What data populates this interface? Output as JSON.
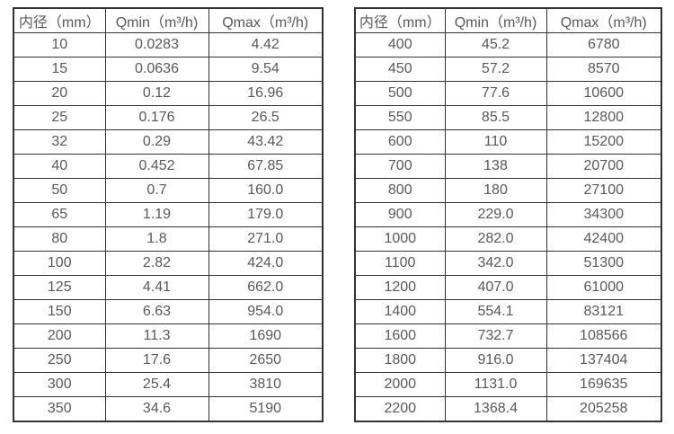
{
  "page": {
    "background": "#ffffff",
    "border_color": "#333333",
    "text_color": "#595959"
  },
  "tables": [
    {
      "name": "flow-table-small-diameters",
      "headers": [
        "内径（mm）",
        "Qmin（m³/h)",
        "Qmax（m³/h)"
      ],
      "rows": [
        [
          "10",
          "0.0283",
          "4.42"
        ],
        [
          "15",
          "0.0636",
          "9.54"
        ],
        [
          "20",
          "0.12",
          "16.96"
        ],
        [
          "25",
          "0.176",
          "26.5"
        ],
        [
          "32",
          "0.29",
          "43.42"
        ],
        [
          "40",
          "0.452",
          "67.85"
        ],
        [
          "50",
          "0.7",
          "160.0"
        ],
        [
          "65",
          "1.19",
          "179.0"
        ],
        [
          "80",
          "1.8",
          "271.0"
        ],
        [
          "100",
          "2.82",
          "424.0"
        ],
        [
          "125",
          "4.41",
          "662.0"
        ],
        [
          "150",
          "6.63",
          "954.0"
        ],
        [
          "200",
          "11.3",
          "1690"
        ],
        [
          "250",
          "17.6",
          "2650"
        ],
        [
          "300",
          "25.4",
          "3810"
        ],
        [
          "350",
          "34.6",
          "5190"
        ]
      ]
    },
    {
      "name": "flow-table-large-diameters",
      "headers": [
        "内径（mm）",
        "Qmin（m³/h)",
        "Qmax（m³/h)"
      ],
      "rows": [
        [
          "400",
          "45.2",
          "6780"
        ],
        [
          "450",
          "57.2",
          "8570"
        ],
        [
          "500",
          "77.6",
          "10600"
        ],
        [
          "550",
          "85.5",
          "12800"
        ],
        [
          "600",
          "110",
          "15200"
        ],
        [
          "700",
          "138",
          "20700"
        ],
        [
          "800",
          "180",
          "27100"
        ],
        [
          "900",
          "229.0",
          "34300"
        ],
        [
          "1000",
          "282.0",
          "42400"
        ],
        [
          "1100",
          "342.0",
          "51300"
        ],
        [
          "1200",
          "407.0",
          "61000"
        ],
        [
          "1400",
          "554.1",
          "83121"
        ],
        [
          "1600",
          "732.7",
          "108566"
        ],
        [
          "1800",
          "916.0",
          "137404"
        ],
        [
          "2000",
          "1131.0",
          "169635"
        ],
        [
          "2200",
          "1368.4",
          "205258"
        ]
      ]
    }
  ]
}
